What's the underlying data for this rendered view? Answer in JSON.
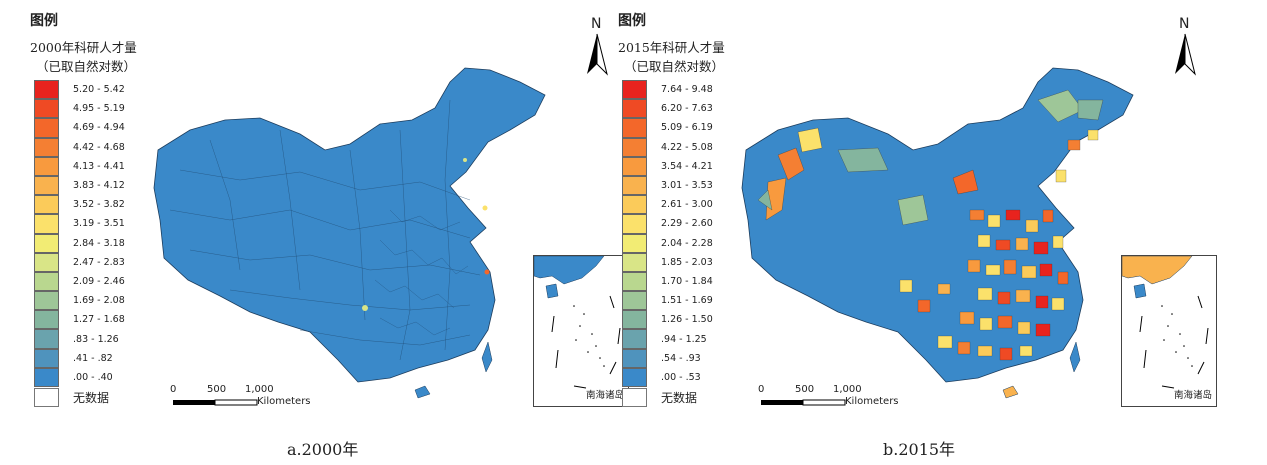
{
  "legend_heading": "图例",
  "nodata_label": "无数据",
  "scale": {
    "ticks": [
      "0",
      "500",
      "1,000"
    ],
    "unit": "Kilometers"
  },
  "north_label": "N",
  "inset_label": "南海诸岛",
  "panels": [
    {
      "legend_title_line1": "2000年科研人才量",
      "legend_title_line2": "（已取自然对数）",
      "caption": "a.2000年",
      "classes": [
        "5.20 - 5.42",
        "4.95 - 5.19",
        "4.69 - 4.94",
        "4.42 - 4.68",
        "4.13 - 4.41",
        "3.83 - 4.12",
        "3.52 - 3.82",
        "3.19 - 3.51",
        "2.84 - 3.18",
        "2.47 - 2.83",
        "2.09 - 2.46",
        "1.69 - 2.08",
        "1.27 - 1.68",
        ".83 - 1.26",
        ".41 - .82",
        ".00 - .40"
      ]
    },
    {
      "legend_title_line1": "2015年科研人才量",
      "legend_title_line2": "（已取自然对数）",
      "caption": "b.2015年",
      "classes": [
        "7.64 - 9.48",
        "6.20 - 7.63",
        "5.09 - 6.19",
        "4.22 - 5.08",
        "3.54 - 4.21",
        "3.01 - 3.53",
        "2.61 - 3.00",
        "2.29 - 2.60",
        "2.04 - 2.28",
        "1.85 - 2.03",
        "1.70 - 1.84",
        "1.51 - 1.69",
        "1.26 - 1.50",
        ".94 - 1.25",
        ".54 - .93",
        ".00 - .53"
      ]
    }
  ],
  "class_colors": [
    "#e8231e",
    "#ef4a24",
    "#f3672a",
    "#f47f33",
    "#f89a3e",
    "#f9b24e",
    "#fbcb5a",
    "#fbe16b",
    "#f2ec74",
    "#d9e587",
    "#b9d78f",
    "#9ec698",
    "#84b59e",
    "#6aa3ad",
    "#4f93bd",
    "#3a89c9"
  ],
  "base_color": "#3a89c9"
}
